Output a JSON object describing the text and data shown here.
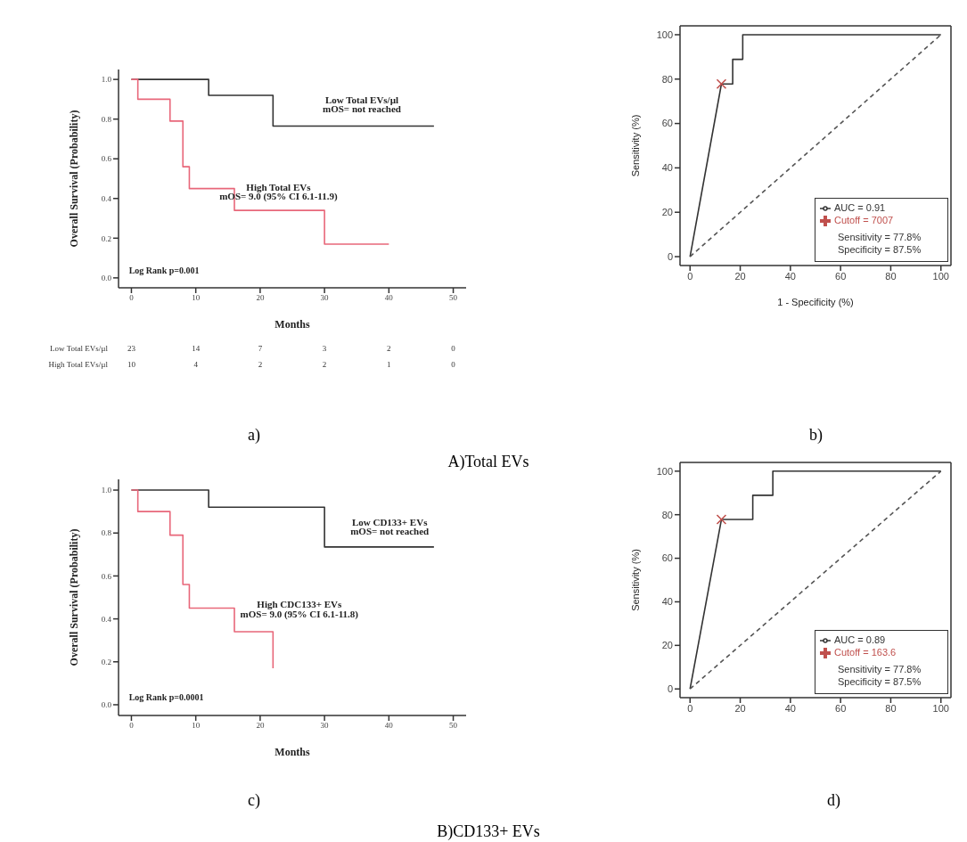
{
  "chart_data": [
    {
      "type": "step",
      "title": "A)Total EVs",
      "subtitle": "a)",
      "xlabel": "Months",
      "ylabel": "Overall Survival (Probability)",
      "xlim": [
        -2,
        52
      ],
      "ylim": [
        -0.05,
        1.05
      ],
      "xticks": [
        0,
        10,
        20,
        30,
        40,
        50
      ],
      "yticks": [
        {
          "value": 0,
          "label": "0.0"
        },
        {
          "value": 0.2,
          "label": "0.2"
        },
        {
          "value": 0.4,
          "label": "0.4"
        },
        {
          "value": 0.6,
          "label": "0.6"
        },
        {
          "value": 0.8,
          "label": "0.8"
        },
        {
          "value": 1,
          "label": "1.0"
        }
      ],
      "series": [
        {
          "color": "#333333",
          "x": [
            0,
            12,
            22,
            47
          ],
          "values": [
            1,
            0.92,
            0.765,
            0.765
          ]
        },
        {
          "color": "#e8677a",
          "x": [
            0,
            1,
            6,
            8,
            9,
            16,
            30,
            40
          ],
          "values": [
            1,
            0.9,
            0.79,
            0.56,
            0.45,
            0.34,
            0.17,
            0.17
          ]
        }
      ],
      "annotations": [
        "Low Total EVs/µl",
        "mOS= not reached",
        "High Total EVs",
        "mOS= 9.0 (95% CI 6.1-11.9)",
        "Log Rank p=0.001",
        "Low Total EVs/µl\t23\t14\t7\t3\t2\t0",
        "High Total EVs/µl\t10\t4\t2\t2\t1\t0"
      ]
    },
    {
      "type": "line",
      "subtitle": "b)",
      "xlabel": "1 - Specificity (%)",
      "ylabel": "Sensitivity (%)",
      "xlim": [
        -4,
        104
      ],
      "ylim": [
        -4,
        104
      ],
      "xticks": [
        0,
        20,
        40,
        60,
        80,
        100
      ],
      "yticks": [
        0,
        20,
        40,
        60,
        80,
        100
      ],
      "legend": "bottom right",
      "series": [
        {
          "name": "AUC = 0.91",
          "color": "#333333",
          "x": [
            0,
            12.5,
            12.5,
            17,
            17,
            21,
            21,
            100
          ],
          "values": [
            0,
            77.8,
            77.8,
            77.8,
            88.9,
            88.9,
            100,
            100
          ]
        },
        {
          "color": "#555555",
          "line_style": "dashed",
          "x": [
            0,
            100
          ],
          "values": [
            0,
            100
          ]
        },
        {
          "type": "scatter",
          "name": "Cutoff = 7007",
          "color": "#c0504d",
          "marker": "cross",
          "x": [
            12.5
          ],
          "values": [
            77.8
          ]
        }
      ],
      "annotations": [
        "Sensitivity = 77.8%",
        "Specificity = 87.5%"
      ]
    },
    {
      "type": "step",
      "title": "B)CD133+ EVs",
      "subtitle": "c)",
      "xlabel": "Months",
      "ylabel": "Overall Survival (Probability)",
      "xlim": [
        -2,
        52
      ],
      "ylim": [
        -0.05,
        1.05
      ],
      "xticks": [
        0,
        10,
        20,
        30,
        40,
        50
      ],
      "yticks": [
        {
          "value": 0,
          "label": "0.0"
        },
        {
          "value": 0.2,
          "label": "0.2"
        },
        {
          "value": 0.4,
          "label": "0.4"
        },
        {
          "value": 0.6,
          "label": "0.6"
        },
        {
          "value": 0.8,
          "label": "0.8"
        },
        {
          "value": 1,
          "label": "1.0"
        }
      ],
      "series": [
        {
          "color": "#333333",
          "x": [
            0,
            12,
            30,
            47
          ],
          "values": [
            1,
            0.92,
            0.735,
            0.735
          ]
        },
        {
          "color": "#e8677a",
          "x": [
            0,
            1,
            6,
            8,
            9,
            16,
            22
          ],
          "values": [
            1,
            0.9,
            0.79,
            0.56,
            0.45,
            0.34,
            0.17
          ]
        }
      ],
      "annotations": [
        "Low CD133+ EVs",
        "mOS= not reached",
        "High CDC133+ EVs",
        "mOS= 9.0 (95% CI 6.1-11.8)",
        "Log Rank p=0.0001"
      ]
    },
    {
      "type": "line",
      "subtitle": "d)",
      "ylabel": "Sensitivity (%)",
      "xlim": [
        -4,
        104
      ],
      "ylim": [
        -4,
        104
      ],
      "xticks": [
        0,
        20,
        40,
        60,
        80,
        100
      ],
      "yticks": [
        0,
        20,
        40,
        60,
        80,
        100
      ],
      "legend": "bottom right",
      "series": [
        {
          "name": "AUC = 0.89",
          "color": "#333333",
          "x": [
            0,
            12.5,
            12.5,
            25,
            25,
            33,
            33,
            100
          ],
          "values": [
            0,
            77.8,
            77.8,
            77.8,
            88.9,
            88.9,
            100,
            100
          ]
        },
        {
          "color": "#555555",
          "line_style": "dashed",
          "x": [
            0,
            100
          ],
          "values": [
            0,
            100
          ]
        },
        {
          "type": "scatter",
          "name": "Cutoff = 163.6",
          "color": "#c0504d",
          "marker": "cross",
          "x": [
            12.5
          ],
          "values": [
            77.8
          ]
        }
      ],
      "annotations": [
        "Sensitivity = 77.8%",
        "Specificity = 87.5%"
      ]
    }
  ]
}
